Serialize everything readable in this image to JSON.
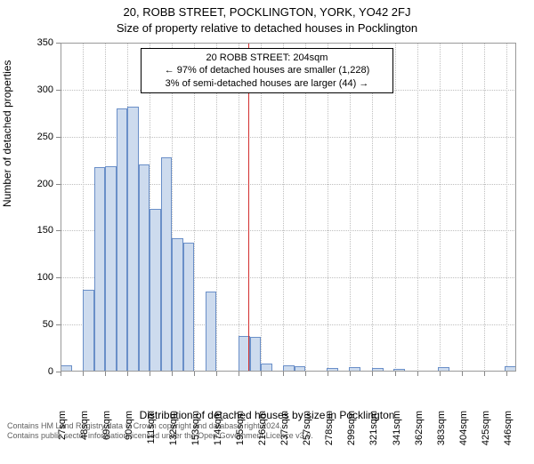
{
  "titles": {
    "line1": "20, ROBB STREET, POCKLINGTON, YORK, YO42 2FJ",
    "line2": "Size of property relative to detached houses in Pocklington"
  },
  "annotation": {
    "line1": "20 ROBB STREET: 204sqm",
    "line2": "← 97% of detached houses are smaller (1,228)",
    "line3": "3% of semi-detached houses are larger (44) →"
  },
  "axes": {
    "ylabel": "Number of detached properties",
    "xlabel": "Distribution of detached houses by size in Pocklington",
    "ylim": [
      0,
      350
    ],
    "ytick_step": 50,
    "label_fontsize": 12,
    "tick_fontsize": 11
  },
  "footer": {
    "line1": "Contains HM Land Registry data © Crown copyright and database right 2024.",
    "line2": "Contains public sector information licensed under the Open Government Licence v3.0."
  },
  "chart": {
    "type": "histogram",
    "background_color": "#ffffff",
    "grid_color": "#bfbfbf",
    "bar_fill": "#cddbee",
    "bar_stroke": "#6a8fc8",
    "marker_color": "#d23030",
    "marker_value": 204,
    "x_range": [
      27,
      456.5
    ],
    "bin_width": 10.5,
    "x_tick_labels": [
      "27sqm",
      "48sqm",
      "69sqm",
      "90sqm",
      "111sqm",
      "132sqm",
      "153sqm",
      "174sqm",
      "195sqm",
      "216sqm",
      "237sqm",
      "257sqm",
      "278sqm",
      "299sqm",
      "321sqm",
      "341sqm",
      "362sqm",
      "383sqm",
      "404sqm",
      "425sqm",
      "446sqm"
    ],
    "bins": [
      {
        "x": 27,
        "count": 7
      },
      {
        "x": 48,
        "count": 87
      },
      {
        "x": 58.5,
        "count": 218
      },
      {
        "x": 69,
        "count": 219
      },
      {
        "x": 79.5,
        "count": 280
      },
      {
        "x": 90,
        "count": 282
      },
      {
        "x": 100.5,
        "count": 220
      },
      {
        "x": 111,
        "count": 173
      },
      {
        "x": 121.5,
        "count": 228
      },
      {
        "x": 132,
        "count": 142
      },
      {
        "x": 142.5,
        "count": 137
      },
      {
        "x": 163.5,
        "count": 85
      },
      {
        "x": 195,
        "count": 38
      },
      {
        "x": 205.5,
        "count": 37
      },
      {
        "x": 216,
        "count": 9
      },
      {
        "x": 237,
        "count": 7
      },
      {
        "x": 247.5,
        "count": 6
      },
      {
        "x": 278,
        "count": 4
      },
      {
        "x": 299,
        "count": 5
      },
      {
        "x": 321,
        "count": 4
      },
      {
        "x": 341,
        "count": 3
      },
      {
        "x": 383,
        "count": 5
      },
      {
        "x": 446,
        "count": 6
      }
    ]
  }
}
